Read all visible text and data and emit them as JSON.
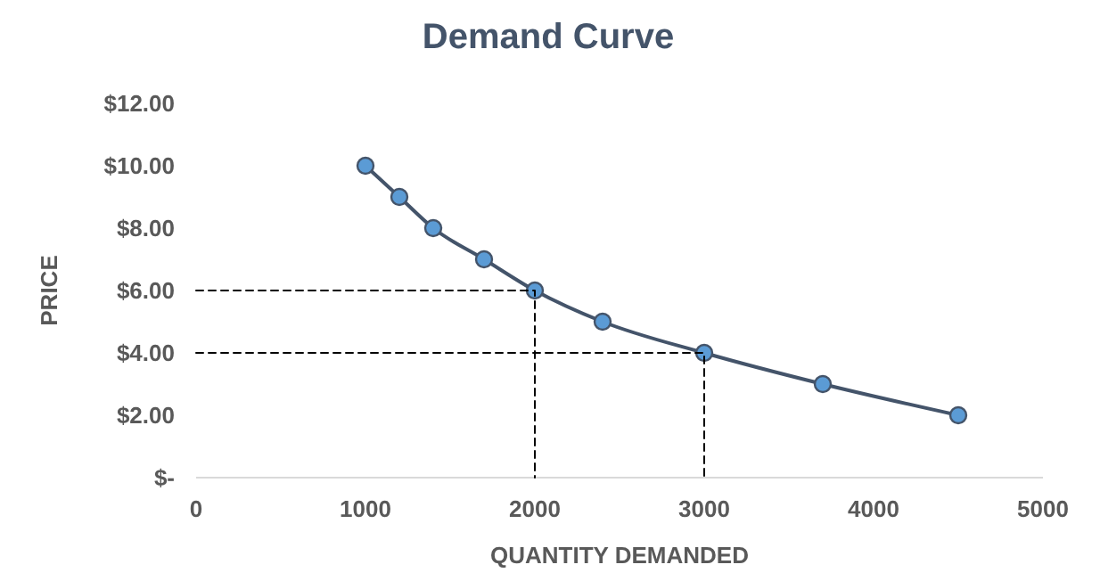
{
  "chart_data": {
    "type": "line",
    "title": "Demand Curve",
    "xlabel": "QUANTITY DEMANDED",
    "ylabel": "PRICE",
    "xlim": [
      0,
      5000
    ],
    "xticks": [
      0,
      1000,
      2000,
      3000,
      4000,
      5000
    ],
    "ylim": [
      0,
      12
    ],
    "yticks": [
      {
        "value": 0,
        "label": "$-"
      },
      {
        "value": 2,
        "label": "$2.00"
      },
      {
        "value": 4,
        "label": "$4.00"
      },
      {
        "value": 6,
        "label": "$6.00"
      },
      {
        "value": 8,
        "label": "$8.00"
      },
      {
        "value": 10,
        "label": "$10.00"
      },
      {
        "value": 12,
        "label": "$12.00"
      }
    ],
    "grid": false,
    "series": [
      {
        "color": "#44546a",
        "marker": "circle",
        "line_style": "solid",
        "x": [
          1000,
          1200,
          1400,
          1700,
          2000,
          2400,
          3000,
          3700,
          4500
        ],
        "values": [
          10,
          9,
          8,
          7,
          6,
          5,
          4,
          3,
          2
        ]
      },
      {
        "color": "#000000",
        "marker": "none",
        "line_style": "dashed",
        "x": [
          0,
          2000,
          2000
        ],
        "values": [
          6,
          6,
          0
        ]
      },
      {
        "color": "#000000",
        "marker": "none",
        "line_style": "dashed",
        "x": [
          0,
          3000,
          3000
        ],
        "values": [
          4,
          4,
          0
        ]
      }
    ]
  }
}
